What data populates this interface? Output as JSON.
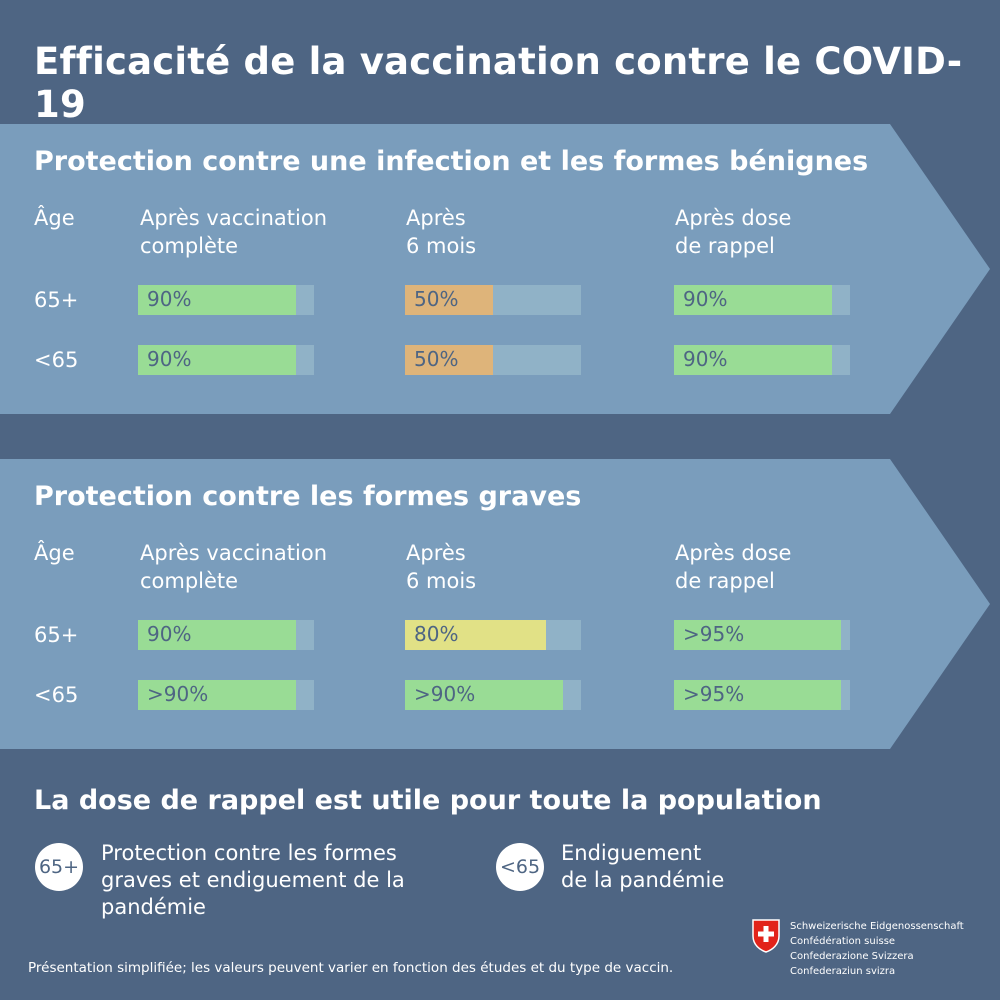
{
  "title": "Efficacité de la vaccination contre le COVID-19",
  "colors": {
    "background": "#4e6583",
    "panel": "#7a9dbc",
    "bar_track": "#90b2c7",
    "green": "#99dc95",
    "orange": "#deb47a",
    "yellow": "#e1e186"
  },
  "panels": [
    {
      "title": "Protection contre une infection et les formes bénignes",
      "age_header": "Âge",
      "columns": [
        "Après vaccination\ncomplète",
        "Après\n6 mois",
        "Après dose\nde rappel"
      ],
      "rows": [
        {
          "age": "65+",
          "cells": [
            {
              "label": "90%",
              "level": 0.9,
              "color": "green"
            },
            {
              "label": "50%",
              "level": 0.5,
              "color": "orange"
            },
            {
              "label": "90%",
              "level": 0.9,
              "color": "green"
            }
          ]
        },
        {
          "age": "<65",
          "cells": [
            {
              "label": "90%",
              "level": 0.9,
              "color": "green"
            },
            {
              "label": "50%",
              "level": 0.5,
              "color": "orange"
            },
            {
              "label": "90%",
              "level": 0.9,
              "color": "green"
            }
          ]
        }
      ]
    },
    {
      "title": "Protection contre les formes graves",
      "age_header": "Âge",
      "columns": [
        "Après vaccination\ncomplète",
        "Après\n6 mois",
        "Après dose\nde rappel"
      ],
      "rows": [
        {
          "age": "65+",
          "cells": [
            {
              "label": "90%",
              "level": 0.9,
              "color": "green"
            },
            {
              "label": "80%",
              "level": 0.8,
              "color": "yellow"
            },
            {
              "label": ">95%",
              "level": 0.95,
              "color": "green"
            }
          ]
        },
        {
          "age": "<65",
          "cells": [
            {
              "label": ">90%",
              "level": 0.9,
              "color": "green"
            },
            {
              "label": ">90%",
              "level": 0.9,
              "color": "green"
            },
            {
              "label": ">95%",
              "level": 0.95,
              "color": "green"
            }
          ]
        }
      ]
    }
  ],
  "summary": {
    "title": "La dose de rappel est utile pour toute la population",
    "items": [
      {
        "badge": "65+",
        "text": "Protection contre les formes\ngraves et endiguement de la\npandémie"
      },
      {
        "badge": "<65",
        "text": "Endiguement\nde la pandémie"
      }
    ]
  },
  "footnote": "Présentation simplifiée; les valeurs peuvent varier en fonction des études et du type de vaccin.",
  "agency": "Schweizerische Eidgenossenschaft\nConfédération suisse\nConfederazione Svizzera\nConfederaziun svizra"
}
